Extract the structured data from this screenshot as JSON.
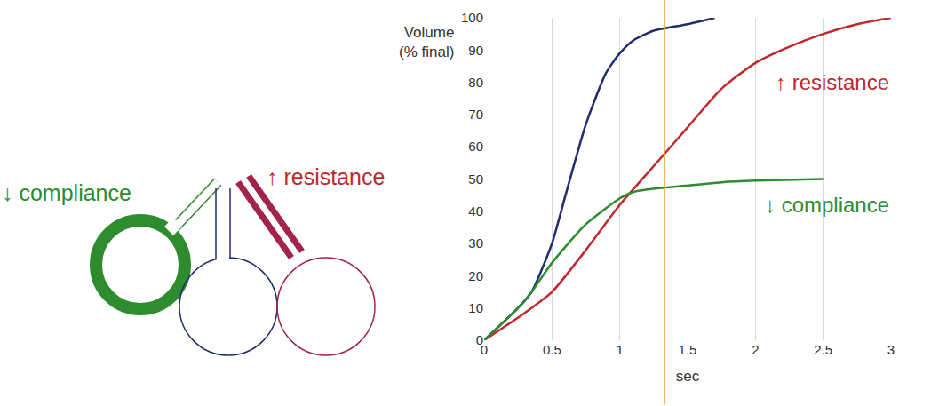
{
  "chart_data": {
    "type": "line",
    "y_label": "Volume (% final)",
    "x_label": "sec",
    "xlim": [
      0,
      3
    ],
    "xticks": [
      0,
      0.5,
      1,
      1.5,
      2,
      2.5,
      3
    ],
    "ylim": [
      0,
      100
    ],
    "yticks": [
      0,
      10,
      20,
      30,
      40,
      50,
      60,
      70,
      80,
      90,
      100
    ],
    "grid": "x",
    "reference_line": {
      "x": 1.33,
      "color": "#f0a030"
    },
    "series": [
      {
        "color": "#1f2d6e",
        "x": [
          0,
          0.25,
          0.35,
          0.5,
          0.6,
          0.75,
          0.9,
          1.0,
          1.1,
          1.25,
          1.5,
          1.7
        ],
        "values": [
          0,
          10,
          15,
          30,
          45,
          67,
          83,
          89,
          93,
          96,
          98,
          100
        ]
      },
      {
        "name": "↑ resistance",
        "color": "#c0282d",
        "x": [
          0,
          0.25,
          0.5,
          0.75,
          1.0,
          1.25,
          1.5,
          1.75,
          2.0,
          2.25,
          2.5,
          2.75,
          3.0
        ],
        "values": [
          0,
          7,
          15,
          28,
          42,
          54,
          66,
          78,
          86,
          91,
          95,
          98,
          100
        ]
      },
      {
        "name": "↓ compliance",
        "color": "#2e8b2e",
        "x": [
          0,
          0.25,
          0.35,
          0.5,
          0.75,
          1.0,
          1.1,
          1.25,
          1.5,
          1.75,
          2.0,
          2.5
        ],
        "values": [
          0,
          10,
          15,
          24,
          36,
          44,
          46,
          47,
          48,
          49,
          49.5,
          50
        ]
      }
    ]
  },
  "diagram": {
    "compliance_label": "↓ compliance",
    "resistance_label": "↑ resistance"
  }
}
